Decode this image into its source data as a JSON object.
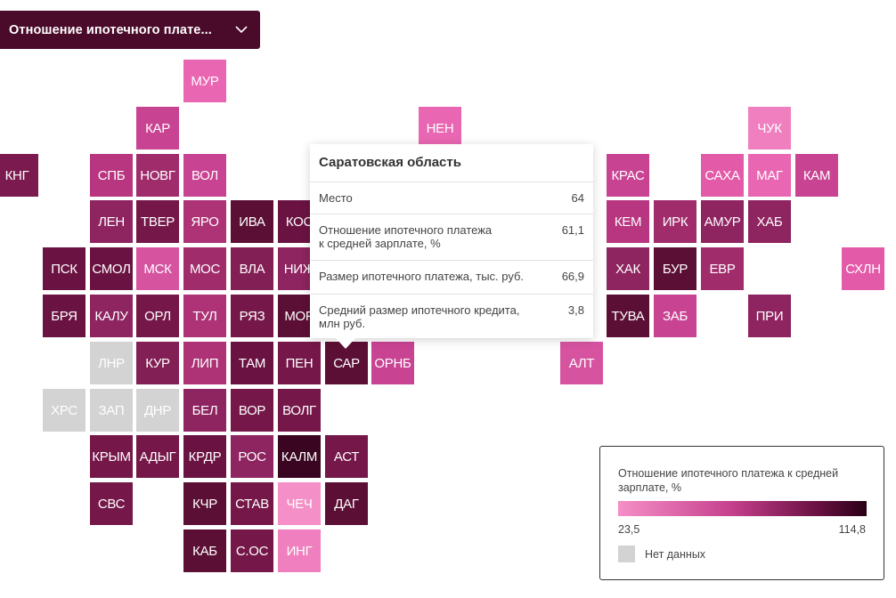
{
  "dropdown": {
    "label": "Отношение ипотечного плате..."
  },
  "grid": {
    "col_start": 0,
    "row_start": 0
  },
  "regions": [
    {
      "code": "МУР",
      "c": 4,
      "r": 0,
      "color": "#e967b2"
    },
    {
      "code": "КАР",
      "c": 3,
      "r": 1,
      "color": "#c94393"
    },
    {
      "code": "НЕН",
      "c": 9,
      "r": 1,
      "color": "#e967b2"
    },
    {
      "code": "ЧУК",
      "c": 16,
      "r": 1,
      "color": "#ef7fbf"
    },
    {
      "code": "КНГ",
      "c": 0,
      "r": 2,
      "color": "#7a1a4e"
    },
    {
      "code": "СПБ",
      "c": 2,
      "r": 2,
      "color": "#b8357f"
    },
    {
      "code": "НОВГ",
      "c": 3,
      "r": 2,
      "color": "#a02c6c"
    },
    {
      "code": "ВОЛ",
      "c": 4,
      "r": 2,
      "color": "#c94393"
    },
    {
      "code": "КРАС",
      "c": 13,
      "r": 2,
      "color": "#c94393"
    },
    {
      "code": "САХА",
      "c": 15,
      "r": 2,
      "color": "#e25aa8"
    },
    {
      "code": "МАГ",
      "c": 16,
      "r": 2,
      "color": "#e967b2"
    },
    {
      "code": "КАМ",
      "c": 17,
      "r": 2,
      "color": "#c94393"
    },
    {
      "code": "ЛЕН",
      "c": 2,
      "r": 3,
      "color": "#8e2460"
    },
    {
      "code": "ТВЕР",
      "c": 3,
      "r": 3,
      "color": "#751849"
    },
    {
      "code": "ЯРО",
      "c": 4,
      "r": 3,
      "color": "#ad3276"
    },
    {
      "code": "ИВА",
      "c": 5,
      "r": 3,
      "color": "#5c0f35"
    },
    {
      "code": "КОС",
      "c": 6,
      "r": 3,
      "color": "#6a1342"
    },
    {
      "code": "КЕМ",
      "c": 13,
      "r": 3,
      "color": "#b8357f"
    },
    {
      "code": "ИРК",
      "c": 14,
      "r": 3,
      "color": "#a02c6c"
    },
    {
      "code": "АМУР",
      "c": 15,
      "r": 3,
      "color": "#8e2460"
    },
    {
      "code": "ХАБ",
      "c": 16,
      "r": 3,
      "color": "#8e2460"
    },
    {
      "code": "ПСК",
      "c": 1,
      "r": 4,
      "color": "#6a1342"
    },
    {
      "code": "СМОЛ",
      "c": 2,
      "r": 4,
      "color": "#6a1342"
    },
    {
      "code": "МСК",
      "c": 3,
      "r": 4,
      "color": "#d653a0"
    },
    {
      "code": "МОС",
      "c": 4,
      "r": 4,
      "color": "#a02c6c"
    },
    {
      "code": "ВЛА",
      "c": 5,
      "r": 4,
      "color": "#821f55"
    },
    {
      "code": "НИЖ",
      "c": 6,
      "r": 4,
      "color": "#8e2460"
    },
    {
      "code": "ХАК",
      "c": 13,
      "r": 4,
      "color": "#8e2460"
    },
    {
      "code": "БУР",
      "c": 14,
      "r": 4,
      "color": "#5c0f35"
    },
    {
      "code": "ЕВР",
      "c": 15,
      "r": 4,
      "color": "#a02c6c"
    },
    {
      "code": "СХЛН",
      "c": 18,
      "r": 4,
      "color": "#e25aa8"
    },
    {
      "code": "БРЯ",
      "c": 1,
      "r": 5,
      "color": "#6a1342"
    },
    {
      "code": "КАЛУ",
      "c": 2,
      "r": 5,
      "color": "#8e2460"
    },
    {
      "code": "ОРЛ",
      "c": 3,
      "r": 5,
      "color": "#751849"
    },
    {
      "code": "ТУЛ",
      "c": 4,
      "r": 5,
      "color": "#ad3276"
    },
    {
      "code": "РЯЗ",
      "c": 5,
      "r": 5,
      "color": "#751849"
    },
    {
      "code": "МОР",
      "c": 6,
      "r": 5,
      "color": "#5c0f35"
    },
    {
      "code": "ТУВА",
      "c": 13,
      "r": 5,
      "color": "#5c0f35"
    },
    {
      "code": "ЗАБ",
      "c": 14,
      "r": 5,
      "color": "#c94393"
    },
    {
      "code": "ПРИ",
      "c": 16,
      "r": 5,
      "color": "#8e2460"
    },
    {
      "code": "ЛНР",
      "c": 2,
      "r": 6,
      "color": "#d3d3d3"
    },
    {
      "code": "КУР",
      "c": 3,
      "r": 6,
      "color": "#821f55"
    },
    {
      "code": "ЛИП",
      "c": 4,
      "r": 6,
      "color": "#ad3276"
    },
    {
      "code": "ТАМ",
      "c": 5,
      "r": 6,
      "color": "#6a1342"
    },
    {
      "code": "ПЕН",
      "c": 6,
      "r": 6,
      "color": "#751849"
    },
    {
      "code": "САР",
      "c": 7,
      "r": 6,
      "color": "#5c0f35"
    },
    {
      "code": "ОРНБ",
      "c": 8,
      "r": 6,
      "color": "#c94393"
    },
    {
      "code": "АЛТ",
      "c": 12,
      "r": 6,
      "color": "#d653a0"
    },
    {
      "code": "ХРС",
      "c": 1,
      "r": 7,
      "color": "#d3d3d3"
    },
    {
      "code": "ЗАП",
      "c": 2,
      "r": 7,
      "color": "#d3d3d3"
    },
    {
      "code": "ДНР",
      "c": 3,
      "r": 7,
      "color": "#d3d3d3"
    },
    {
      "code": "БЕЛ",
      "c": 4,
      "r": 7,
      "color": "#8e2460"
    },
    {
      "code": "ВОР",
      "c": 5,
      "r": 7,
      "color": "#751849"
    },
    {
      "code": "ВОЛГ",
      "c": 6,
      "r": 7,
      "color": "#751849"
    },
    {
      "code": "КРЫМ",
      "c": 2,
      "r": 8,
      "color": "#751849"
    },
    {
      "code": "АДЫГ",
      "c": 3,
      "r": 8,
      "color": "#751849"
    },
    {
      "code": "КРДР",
      "c": 4,
      "r": 8,
      "color": "#6a1342"
    },
    {
      "code": "РОС",
      "c": 5,
      "r": 8,
      "color": "#8e2460"
    },
    {
      "code": "КАЛМ",
      "c": 6,
      "r": 8,
      "color": "#3a0520"
    },
    {
      "code": "АСТ",
      "c": 7,
      "r": 8,
      "color": "#751849"
    },
    {
      "code": "СВС",
      "c": 2,
      "r": 9,
      "color": "#751849"
    },
    {
      "code": "КЧР",
      "c": 4,
      "r": 9,
      "color": "#5c0f35"
    },
    {
      "code": "СТАВ",
      "c": 5,
      "r": 9,
      "color": "#751849"
    },
    {
      "code": "ЧЕЧ",
      "c": 6,
      "r": 9,
      "color": "#f58fc7"
    },
    {
      "code": "ДАГ",
      "c": 7,
      "r": 9,
      "color": "#5c0f35"
    },
    {
      "code": "КАБ",
      "c": 4,
      "r": 10,
      "color": "#5c0f35"
    },
    {
      "code": "С.ОС",
      "c": 5,
      "r": 10,
      "color": "#751849"
    },
    {
      "code": "ИНГ",
      "c": 6,
      "r": 10,
      "color": "#ef7fbf"
    }
  ],
  "tooltip": {
    "title": "Саратовская область",
    "rows": [
      {
        "label": "Место",
        "value": "64"
      },
      {
        "label": "Отношение ипотечного платежа\nк средней зарплате, %",
        "value": "61,1"
      },
      {
        "label": "Размер ипотечного платежа, тыс. руб.",
        "value": "66,9"
      },
      {
        "label": "Средний размер ипотечного кредита,\nмлн руб.",
        "value": "3,8"
      }
    ]
  },
  "legend": {
    "title": "Отношение ипотечного платежа к средней зарплате, %",
    "min": "23,5",
    "max": "114,8",
    "no_data": "Нет данных",
    "colors": {
      "low": "#f58fc7",
      "high": "#2a0016",
      "no_data": "#d3d3d3"
    }
  }
}
